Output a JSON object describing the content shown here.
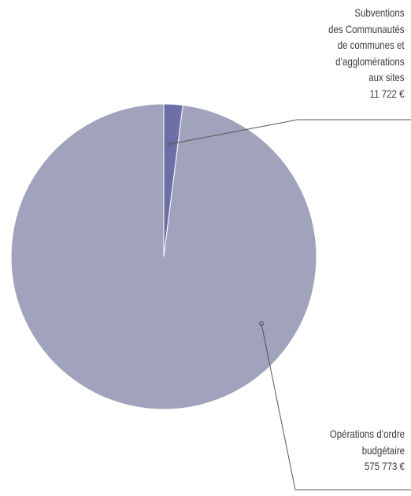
{
  "chart_data": {
    "type": "pie",
    "categories": [
      "Subventions\ndes Communautés\nde communes et\nd’agglomérations\naux sites",
      "Opérations d’ordre\nbudgétaire"
    ],
    "values": [
      11722,
      575773
    ],
    "value_labels": [
      "11 722 €",
      "575 773 €"
    ],
    "colors": [
      "#6d6fa7",
      "#a1a2bb"
    ]
  }
}
